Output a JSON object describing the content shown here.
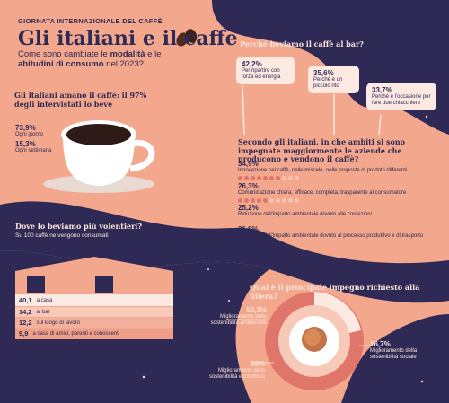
{
  "header": {
    "eyebrow": "GIORNATA INTERNAZIONALE DEL CAFFÈ",
    "title": "Gli italiani e il caffè",
    "subtitle_pre": "Come sono cambiate le ",
    "subtitle_b1": "modalità",
    "subtitle_mid": " e le ",
    "subtitle_b2": "abitudini di consumo",
    "subtitle_post": " nel 2023?"
  },
  "love": {
    "heading": "Gli italiani amano il caffè: il 97% degli intervistati lo beve",
    "items": [
      {
        "value": "73,9%",
        "label": "Ogni giorno"
      },
      {
        "value": "15,3%",
        "label": "Ogni settimana"
      }
    ]
  },
  "why": {
    "heading": "Perché beviamo il caffè al bar?",
    "items": [
      {
        "value": "42,2%",
        "label": "Per ripartire con forza ed energia"
      },
      {
        "value": "35,6%",
        "label": "Perché è un piccolo rito"
      },
      {
        "value": "33,7%",
        "label": "Perché è l'occasione per fare due chiacchiere"
      }
    ]
  },
  "areas": {
    "heading": "Secondo gli italiani, in che ambiti si sono impegnate maggiormente le aziende che producono e vendono il caffè?",
    "items": [
      {
        "value": "34,9%",
        "label": "Innovazione nel caffè, nelle miscele, nelle proposte di prodotti differenti",
        "dots": 7
      },
      {
        "value": "26,3%",
        "label": "Comunicazione chiara, efficace, completa, trasparente al consumatore",
        "dots": 5
      },
      {
        "value": "25,2%",
        "label": "Riduzione dell'impatto ambientale dovuto alle confezioni",
        "dots": 5
      },
      {
        "value": "21,8%",
        "label": "Riduzione dell'impatto ambientale dovuto al processo produttivo e di trasporto",
        "dots": 4
      }
    ]
  },
  "where": {
    "heading": "Dove lo beviamo più volentieri?",
    "subheading": "Su 100 caffè ne vengono consumati",
    "items": [
      {
        "value": "40,1",
        "label": "a casa"
      },
      {
        "value": "14,2",
        "label": "al bar"
      },
      {
        "value": "12,2",
        "label": "sul luogo di lavoro"
      },
      {
        "value": "9,9",
        "label": "a casa di amici, parenti e conoscenti"
      }
    ]
  },
  "commitment": {
    "heading": "Qual è il principale impegno richiesto alla filiera?",
    "items": [
      {
        "value": "50,3%",
        "label": "Miglioramento della sostenibilità ambientale"
      },
      {
        "value": "16,7%",
        "label": "Miglioramento della sostenibilità sociale"
      },
      {
        "value": "33%",
        "label": "Miglioramento della sostenibilità economica"
      }
    ]
  },
  "colors": {
    "background": "#f3a88e",
    "navy": "#2f2a55",
    "coral": "#e07669",
    "cream": "#fbe9e2"
  }
}
